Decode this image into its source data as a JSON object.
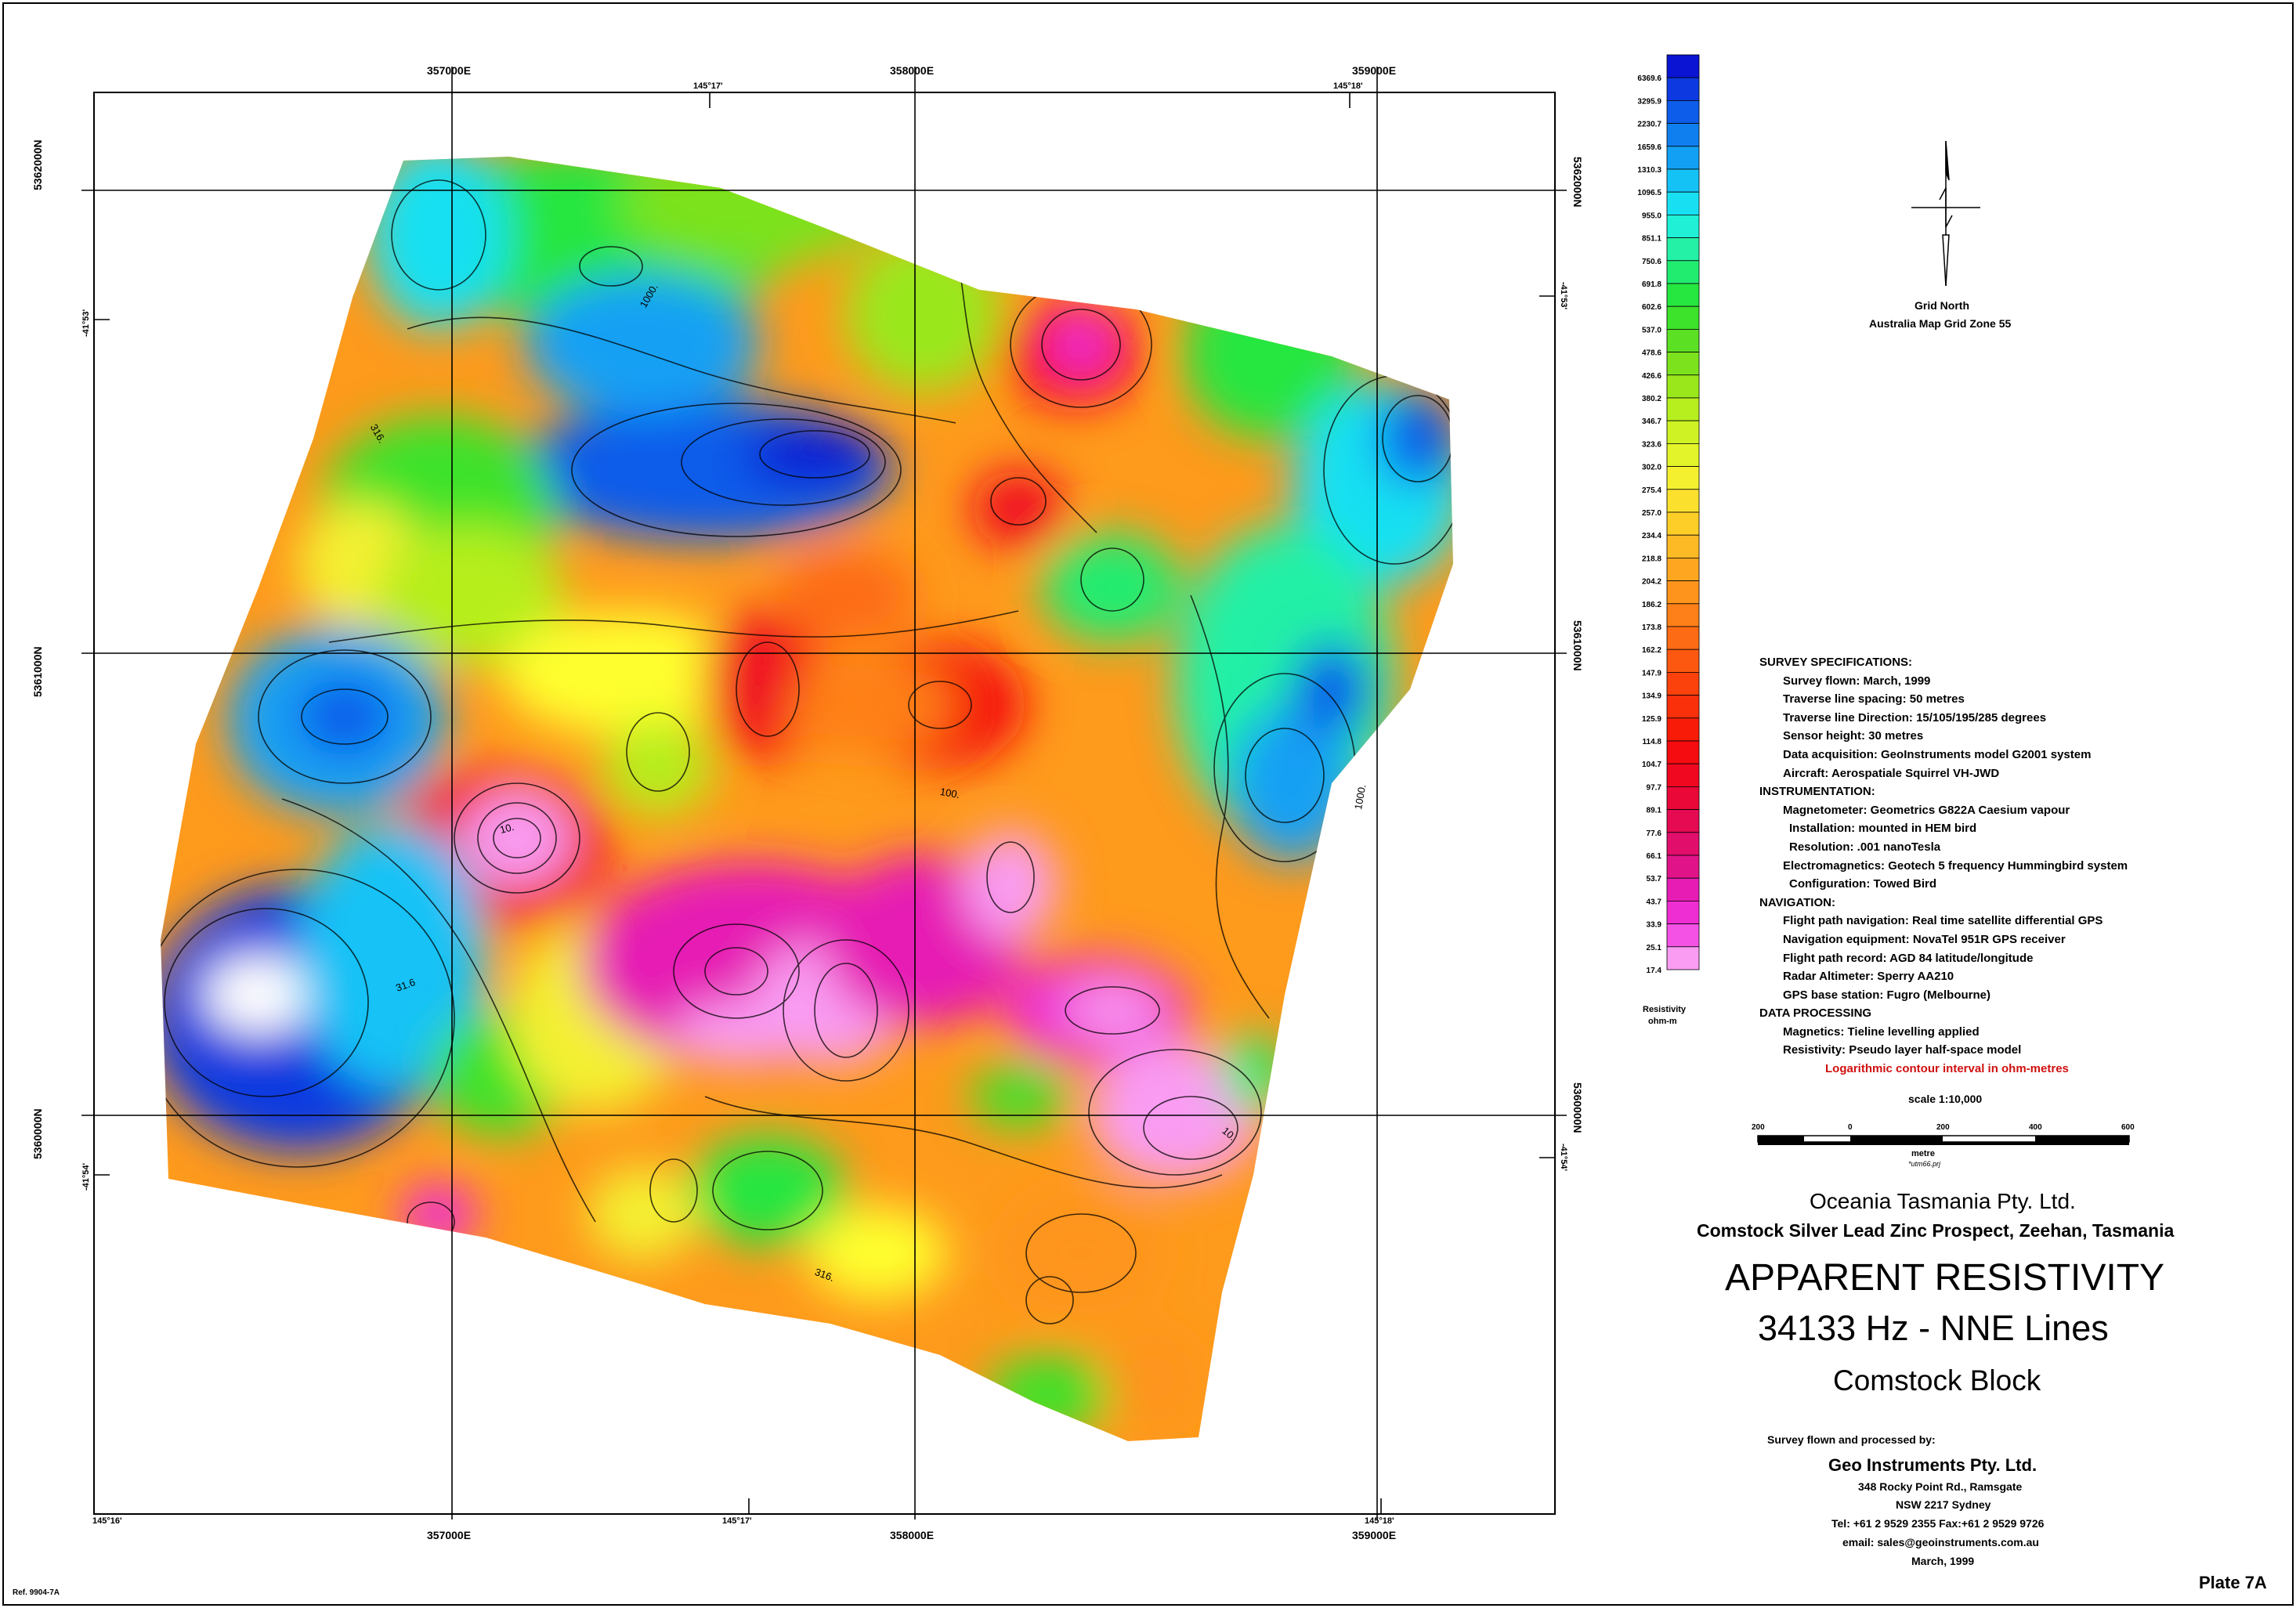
{
  "sheet_ref": "Ref. 9904-7A",
  "plate": "Plate 7A",
  "map": {
    "easting_labels": [
      "357000E",
      "358000E",
      "359000E"
    ],
    "northing_labels": [
      "5362000N",
      "5361000N",
      "5360000N"
    ],
    "longitude_labels_top": [
      "145°17'",
      "145°18'"
    ],
    "longitude_labels_bottom": [
      "145°16'",
      "145°17'",
      "145°18'"
    ],
    "latitude_labels": [
      "-41°53'",
      "-41°54'"
    ],
    "contour_labels": [
      "1000.",
      "316.",
      "100.",
      "31.6",
      "10."
    ]
  },
  "legend": {
    "unit_line1": "Resistivity",
    "unit_line2": "ohm-m",
    "values": [
      "6369.6",
      "3295.9",
      "2230.7",
      "1659.6",
      "1310.3",
      "1096.5",
      "955.0",
      "851.1",
      "750.6",
      "691.8",
      "602.6",
      "537.0",
      "478.6",
      "426.6",
      "380.2",
      "346.7",
      "323.6",
      "302.0",
      "275.4",
      "257.0",
      "234.4",
      "218.8",
      "204.2",
      "186.2",
      "173.8",
      "162.2",
      "147.9",
      "134.9",
      "125.9",
      "114.8",
      "104.7",
      "97.7",
      "89.1",
      "77.6",
      "66.1",
      "53.7",
      "43.7",
      "33.9",
      "25.1",
      "17.4"
    ],
    "colors": [
      "#0a14d2",
      "#0c3ae0",
      "#0e5cea",
      "#0f7ff0",
      "#12a0f4",
      "#15c2f6",
      "#18e0f2",
      "#1ff0d6",
      "#24f0a6",
      "#22ec70",
      "#26e640",
      "#3de22a",
      "#5ce024",
      "#7ce21e",
      "#9ae81c",
      "#b6ee1e",
      "#cef224",
      "#e4f42a",
      "#f4f030",
      "#fce02e",
      "#fece28",
      "#feba24",
      "#fea620",
      "#fe941c",
      "#fe8018",
      "#fd6c14",
      "#fc5810",
      "#fb420c",
      "#fa300a",
      "#f81c08",
      "#f50c10",
      "#f00820",
      "#ea0838",
      "#e50a52",
      "#e20e6c",
      "#e01488",
      "#e61cb4",
      "#ee2ed2",
      "#f452e4",
      "#f99cf2"
    ]
  },
  "north_arrow": {
    "line1": "Grid North",
    "line2": "Australia Map Grid Zone 55"
  },
  "specs": [
    {
      "type": "head",
      "text": "SURVEY SPECIFICATIONS:"
    },
    {
      "type": "item",
      "text": "Survey flown: March, 1999"
    },
    {
      "type": "item",
      "text": "Traverse line spacing: 50 metres"
    },
    {
      "type": "item",
      "text": "Traverse line Direction: 15/105/195/285 degrees"
    },
    {
      "type": "item",
      "text": "Sensor height: 30 metres"
    },
    {
      "type": "item",
      "text": "Data acquisition: GeoInstruments model G2001 system"
    },
    {
      "type": "item",
      "text": "Aircraft: Aerospatiale Squirrel VH-JWD"
    },
    {
      "type": "head",
      "text": "INSTRUMENTATION:"
    },
    {
      "type": "item",
      "text": "Magnetometer: Geometrics G822A Caesium vapour"
    },
    {
      "type": "sub",
      "text": "Installation: mounted in HEM bird"
    },
    {
      "type": "sub",
      "text": "Resolution: .001 nanoTesla"
    },
    {
      "type": "item",
      "text": "Electromagnetics: Geotech 5 frequency Hummingbird system"
    },
    {
      "type": "sub",
      "text": "Configuration: Towed Bird"
    },
    {
      "type": "head",
      "text": "NAVIGATION:"
    },
    {
      "type": "item",
      "text": "Flight path navigation: Real time satellite differential GPS"
    },
    {
      "type": "item",
      "text": "Navigation equipment: NovaTel 951R GPS receiver"
    },
    {
      "type": "item",
      "text": "Flight path record: AGD 84 latitude/longitude"
    },
    {
      "type": "item",
      "text": "Radar Altimeter: Sperry AA210"
    },
    {
      "type": "item",
      "text": "GPS base station: Fugro (Melbourne)"
    },
    {
      "type": "head",
      "text": "DATA PROCESSING"
    },
    {
      "type": "item",
      "text": "Magnetics: Tieline levelling applied"
    },
    {
      "type": "item",
      "text": "Resistivity: Pseudo layer half-space model"
    },
    {
      "type": "red",
      "text": "Logarithmic contour interval in ohm-metres"
    }
  ],
  "scale": {
    "title": "scale 1:10,000",
    "ticks": [
      "200",
      "0",
      "200",
      "400",
      "600"
    ],
    "unit": "metre",
    "file": "*utm66.prj"
  },
  "title_block": {
    "company": "Oceania Tasmania Pty. Ltd.",
    "project": "Comstock Silver Lead Zinc Prospect, Zeehan, Tasmania",
    "title1": "APPARENT RESISTIVITY",
    "title2": "34133 Hz - NNE Lines",
    "title3": "Comstock Block"
  },
  "contractor": {
    "intro": "Survey flown and processed by:",
    "name": "Geo Instruments Pty. Ltd.",
    "address1": "348 Rocky Point Rd., Ramsgate",
    "address2": "NSW 2217 Sydney",
    "phone": "Tel: +61 2 9529 2355  Fax:+61 2 9529 9726",
    "email": "email: sales@geoinstruments.com.au",
    "date": "March, 1999"
  }
}
